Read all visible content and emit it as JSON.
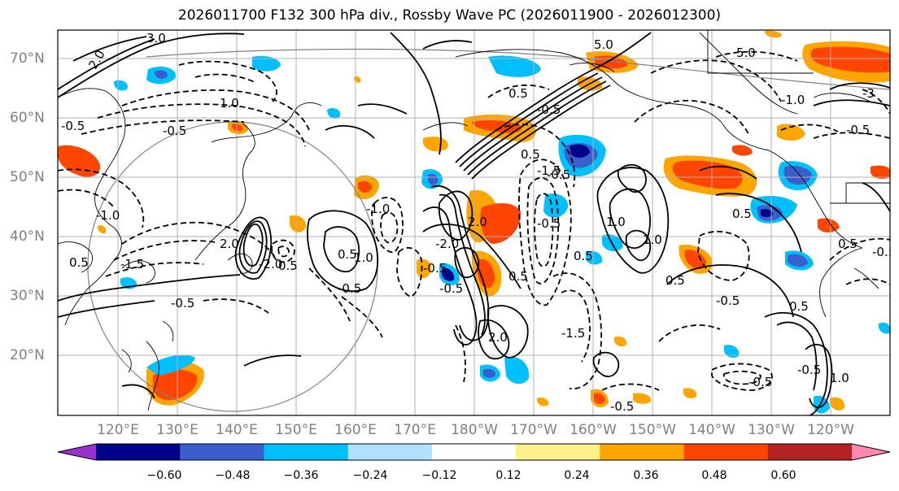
{
  "title": "2026011700 F132 300 hPa div., Rossby Wave PC (2026011900 - 2026012300)",
  "lat_labels": [
    "70°N",
    "60°N",
    "50°N",
    "40°N",
    "30°N",
    "20°N"
  ],
  "lon_labels": [
    "120°E",
    "130°E",
    "140°E",
    "150°E",
    "160°E",
    "170°E",
    "180°W",
    "170°W",
    "160°W",
    "150°W",
    "140°W",
    "130°W",
    "120°W"
  ],
  "colorbar": {
    "colors": [
      "#9932cc",
      "#00008b",
      "#3a5fcd",
      "#00bfff",
      "#b0e2ff",
      "#ffffff",
      "#fff08a",
      "#ffa500",
      "#ff4500",
      "#b22222",
      "#ff88b0"
    ],
    "labels": [
      "−0.60",
      "−0.48",
      "−0.36",
      "−0.24",
      "−0.12",
      "0.12",
      "0.24",
      "0.36",
      "0.48",
      "0.60"
    ]
  },
  "contour_labels": [
    "2.0",
    "3.0",
    "-0.5",
    "0.5",
    "1.0",
    "-1.0",
    "-0.5",
    "-1.5",
    "2.0",
    "-2.0",
    "-0.5",
    "0.5",
    "2.0",
    "-2.0",
    "1.0",
    "-1.0",
    "-0.5",
    "0.5",
    "-0.5",
    "-0.5",
    "0.5",
    "-1.5",
    "0.5",
    "0.5",
    "-0.5",
    "1.0",
    "-0.5",
    "2.0",
    "0.5",
    "-1.5",
    "-0.5",
    "0.5",
    "-0.5",
    "1.0",
    "-0.5",
    "-0.5",
    "1.0",
    "-0.5",
    "5.0",
    "5.0",
    "-3",
    "-1.0",
    "-0.5",
    "0.5",
    "0.5",
    "0.5",
    "-0.5"
  ]
}
